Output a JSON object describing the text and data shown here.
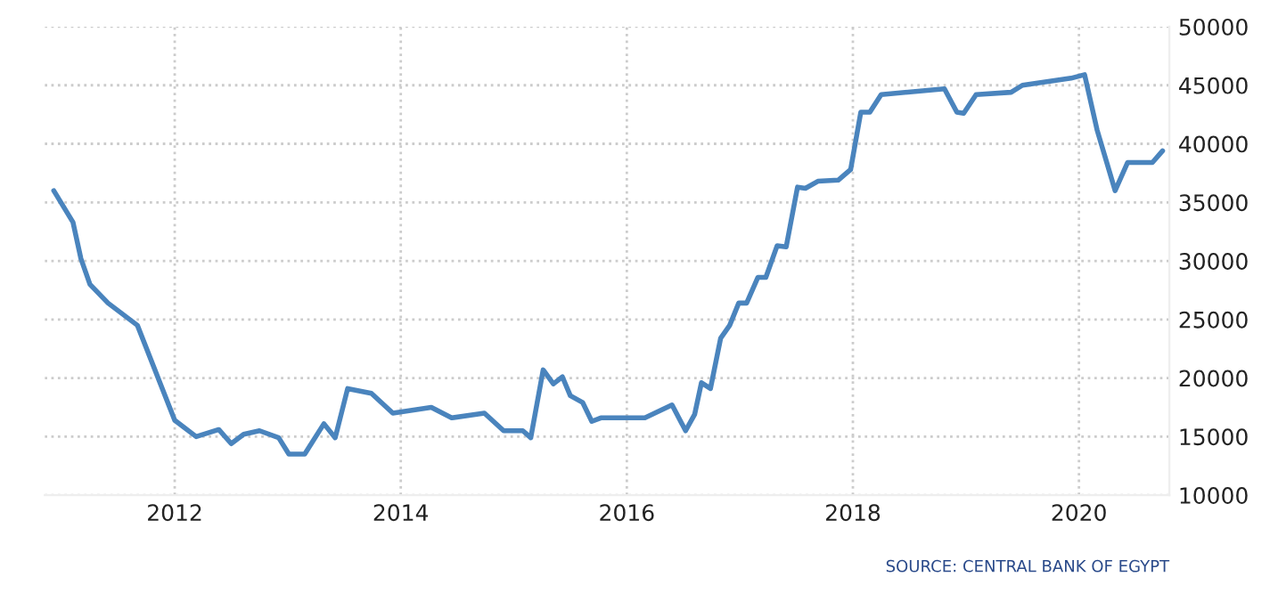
{
  "chart_data": {
    "type": "line",
    "xlim": [
      2010.85,
      2020.8
    ],
    "xticks": [
      2012,
      2014,
      2016,
      2018,
      2020
    ],
    "ylim": [
      10000,
      50000
    ],
    "yticks": [
      10000,
      15000,
      20000,
      25000,
      30000,
      35000,
      40000,
      45000,
      50000
    ],
    "grid": true,
    "annotations": [
      "SOURCE: CENTRAL BANK OF EGYPT"
    ],
    "series": [
      {
        "color": "#4a84bd",
        "x": [
          2010.93,
          2011.1,
          2011.17,
          2011.25,
          2011.41,
          2011.67,
          2012.0,
          2012.19,
          2012.39,
          2012.5,
          2012.61,
          2012.75,
          2012.92,
          2013.01,
          2013.15,
          2013.32,
          2013.42,
          2013.53,
          2013.74,
          2013.93,
          2014.27,
          2014.45,
          2014.74,
          2014.91,
          2015.08,
          2015.15,
          2015.26,
          2015.35,
          2015.43,
          2015.5,
          2015.61,
          2015.69,
          2015.77,
          2016.0,
          2016.16,
          2016.4,
          2016.52,
          2016.6,
          2016.66,
          2016.74,
          2016.83,
          2016.91,
          2016.99,
          2017.06,
          2017.16,
          2017.23,
          2017.33,
          2017.41,
          2017.51,
          2017.58,
          2017.69,
          2017.87,
          2017.98,
          2018.07,
          2018.15,
          2018.25,
          2018.81,
          2018.92,
          2018.98,
          2019.09,
          2019.4,
          2019.5,
          2019.93,
          2020.05,
          2020.16,
          2020.32,
          2020.43,
          2020.65,
          2020.74
        ],
        "values": [
          36000,
          33300,
          30200,
          28000,
          26400,
          24500,
          16400,
          15000,
          15600,
          14400,
          15200,
          15500,
          14900,
          13500,
          13500,
          16100,
          14900,
          19100,
          18700,
          17000,
          17500,
          16600,
          17000,
          15500,
          15500,
          14900,
          20700,
          19500,
          20100,
          18500,
          17900,
          16300,
          16600,
          16600,
          16600,
          17700,
          15500,
          16900,
          19600,
          19100,
          23400,
          24500,
          26400,
          26400,
          28600,
          28600,
          31300,
          31200,
          36300,
          36200,
          36800,
          36900,
          37800,
          42700,
          42700,
          44200,
          44700,
          42700,
          42600,
          44200,
          44400,
          45000,
          45600,
          45900,
          41200,
          36000,
          38400,
          38400,
          39400
        ]
      }
    ]
  }
}
